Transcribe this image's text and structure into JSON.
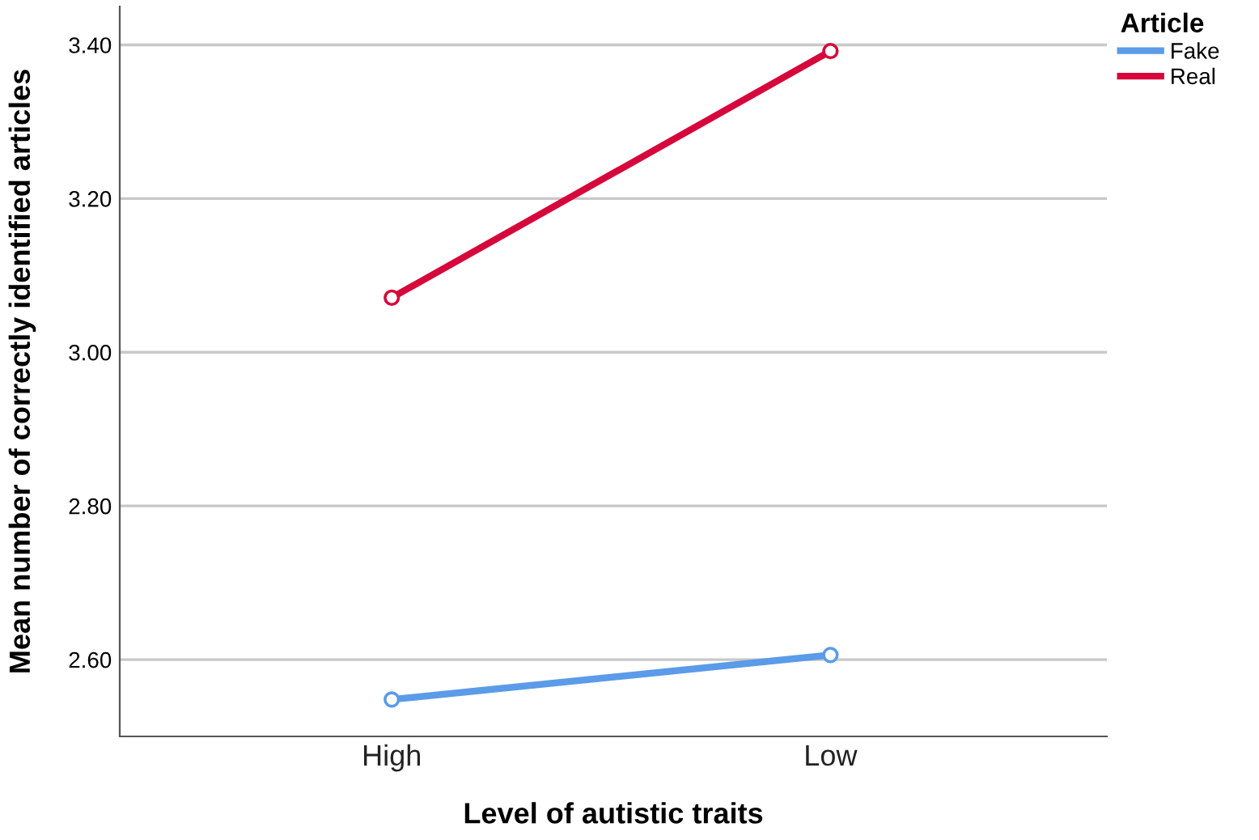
{
  "chart_data": {
    "type": "line",
    "xlabel": "Level of autistic traits",
    "ylabel": "Mean number of correctly identified articles",
    "legend_title": "Article",
    "categories": [
      "High",
      "Low"
    ],
    "series": [
      {
        "name": "Fake",
        "color": "#5b9be8",
        "values": [
          2.548,
          2.606
        ]
      },
      {
        "name": "Real",
        "color": "#d6083b",
        "values": [
          3.071,
          3.392
        ]
      }
    ],
    "ylim": [
      2.5,
      3.45
    ],
    "yticks": [
      {
        "value": 2.6,
        "label": "2.60"
      },
      {
        "value": 2.8,
        "label": "2.80"
      },
      {
        "value": 3.0,
        "label": "3.00"
      },
      {
        "value": 3.2,
        "label": "3.20"
      },
      {
        "value": 3.4,
        "label": "3.40"
      }
    ],
    "grid": "y",
    "legend": "top right",
    "marker": "circle",
    "line_style": "solid"
  }
}
